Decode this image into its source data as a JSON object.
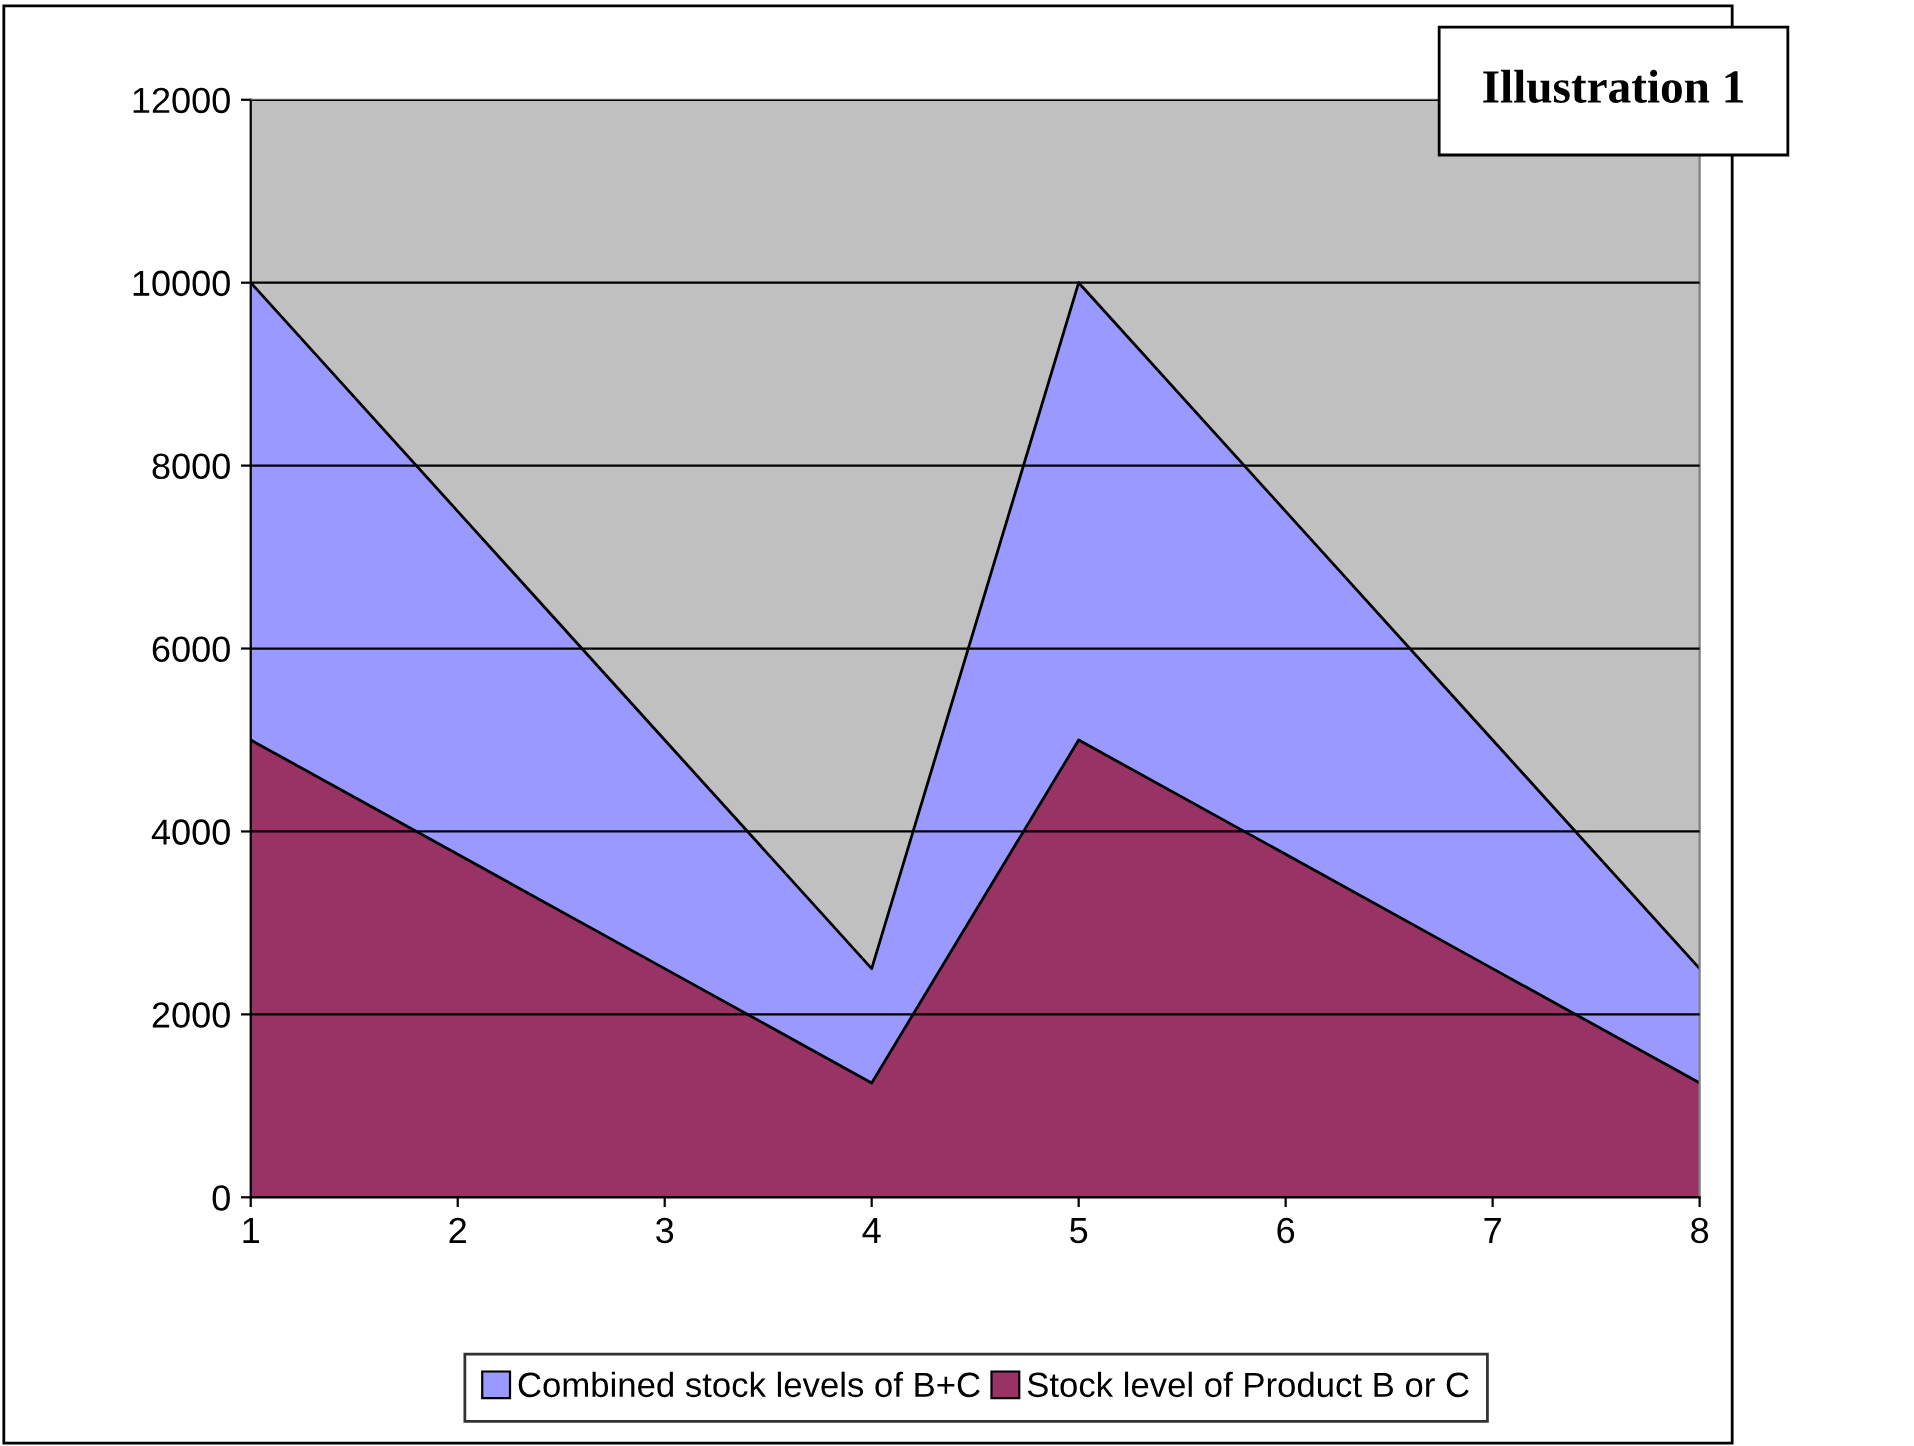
{
  "chart_data": {
    "type": "area",
    "x": [
      1,
      2,
      3,
      4,
      5,
      6,
      7,
      8
    ],
    "series": [
      {
        "name": "Combined stock levels of B+C",
        "color": "#9999ff",
        "values": [
          10000,
          7500,
          5000,
          2500,
          10000,
          7500,
          5000,
          2500
        ]
      },
      {
        "name": "Stock level of Product B or C",
        "color": "#993366",
        "values": [
          5000,
          3750,
          2500,
          1250,
          5000,
          3750,
          2500,
          1250
        ]
      }
    ],
    "xlim": [
      1,
      8
    ],
    "xticks": [
      1,
      2,
      3,
      4,
      5,
      6,
      7,
      8
    ],
    "ylim": [
      0,
      12000
    ],
    "yticks": [
      0,
      2000,
      4000,
      6000,
      8000,
      10000,
      12000
    ],
    "grid": "y",
    "legend": "bottom",
    "annotations": [
      "Illustration 1"
    ]
  }
}
